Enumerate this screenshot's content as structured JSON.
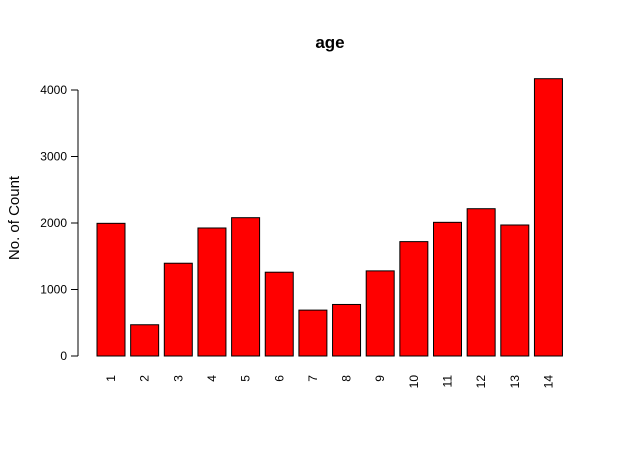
{
  "chart_data": {
    "type": "bar",
    "title": "age",
    "xlabel": "",
    "ylabel": "No. of Count",
    "categories": [
      "1",
      "2",
      "3",
      "4",
      "5",
      "6",
      "7",
      "8",
      "9",
      "10",
      "11",
      "12",
      "13",
      "14"
    ],
    "values": [
      1995,
      470,
      1395,
      1925,
      2080,
      1260,
      690,
      775,
      1280,
      1720,
      2010,
      2215,
      1970,
      4170
    ],
    "ylim": [
      0,
      4000
    ],
    "yticks": [
      "0",
      "1000",
      "2000",
      "3000",
      "4000"
    ],
    "bar_color": "#ff0000",
    "grid": false,
    "legend": "none"
  }
}
